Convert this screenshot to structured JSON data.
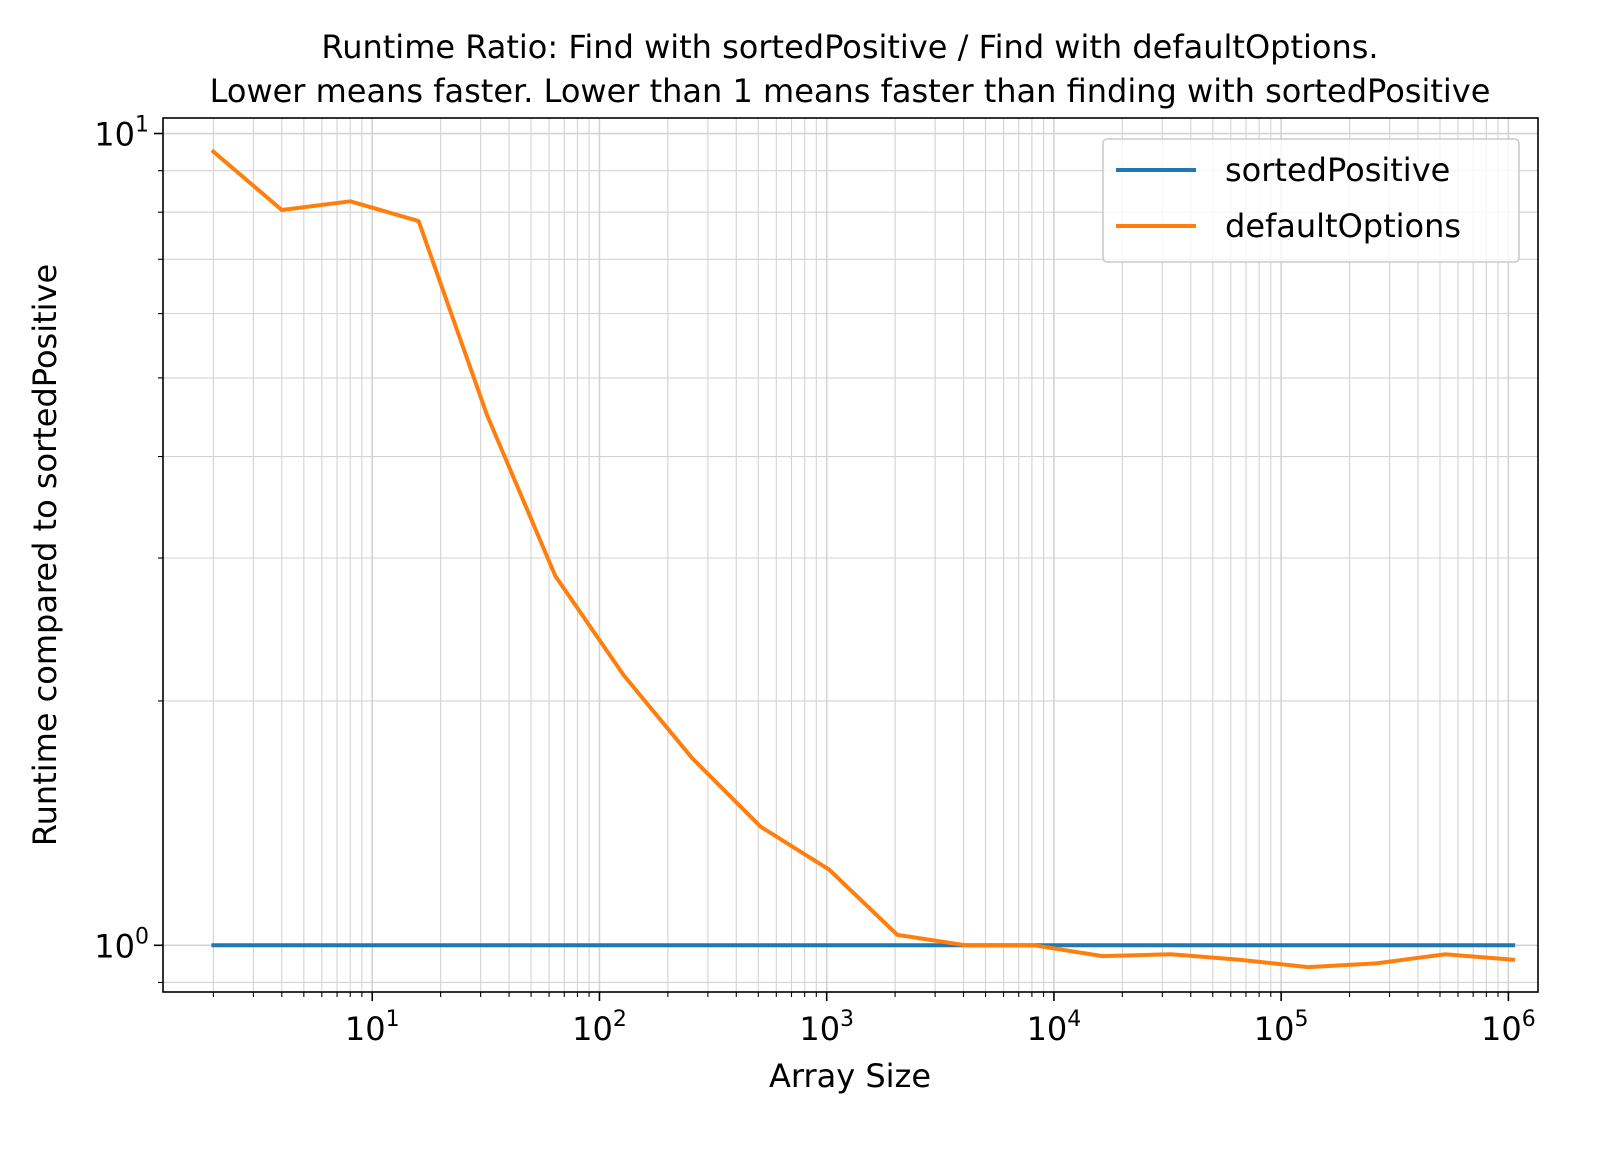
{
  "chart_data": {
    "type": "line",
    "title": [
      "Runtime Ratio: Find with sortedPositive / Find with defaultOptions.",
      "Lower means faster. Lower than 1 means faster than finding with sortedPositive"
    ],
    "xlabel": "Array Size",
    "ylabel": "Runtime compared to sortedPositive",
    "xscale": "log",
    "yscale": "log",
    "xlim": [
      1.2,
      1350000
    ],
    "ylim": [
      0.876,
      10.45
    ],
    "grid": true,
    "legend_position": "upper right",
    "x_ticks": [
      {
        "base": "10",
        "exp": "1",
        "value": 10
      },
      {
        "base": "10",
        "exp": "2",
        "value": 100
      },
      {
        "base": "10",
        "exp": "3",
        "value": 1000
      },
      {
        "base": "10",
        "exp": "4",
        "value": 10000
      },
      {
        "base": "10",
        "exp": "5",
        "value": 100000
      },
      {
        "base": "10",
        "exp": "6",
        "value": 1000000
      }
    ],
    "y_ticks": [
      {
        "base": "10",
        "exp": "0",
        "value": 1
      },
      {
        "base": "10",
        "exp": "1",
        "value": 10
      }
    ],
    "x": [
      2,
      4,
      8,
      16,
      32,
      64,
      128,
      256,
      512,
      1024,
      2048,
      4096,
      8192,
      16384,
      32768,
      65536,
      131072,
      262144,
      524288,
      1048576
    ],
    "series": [
      {
        "name": "sortedPositive",
        "color": "#1f77b4",
        "values": [
          1,
          1,
          1,
          1,
          1,
          1,
          1,
          1,
          1,
          1,
          1,
          1,
          1,
          1,
          1,
          1,
          1,
          1,
          1,
          1
        ]
      },
      {
        "name": "defaultOptions",
        "color": "#ff7f0e",
        "values": [
          9.5,
          8.05,
          8.25,
          7.8,
          4.5,
          2.85,
          2.15,
          1.7,
          1.4,
          1.24,
          1.03,
          1.0,
          1.0,
          0.97,
          0.975,
          0.96,
          0.94,
          0.95,
          0.975,
          0.96
        ]
      }
    ]
  }
}
